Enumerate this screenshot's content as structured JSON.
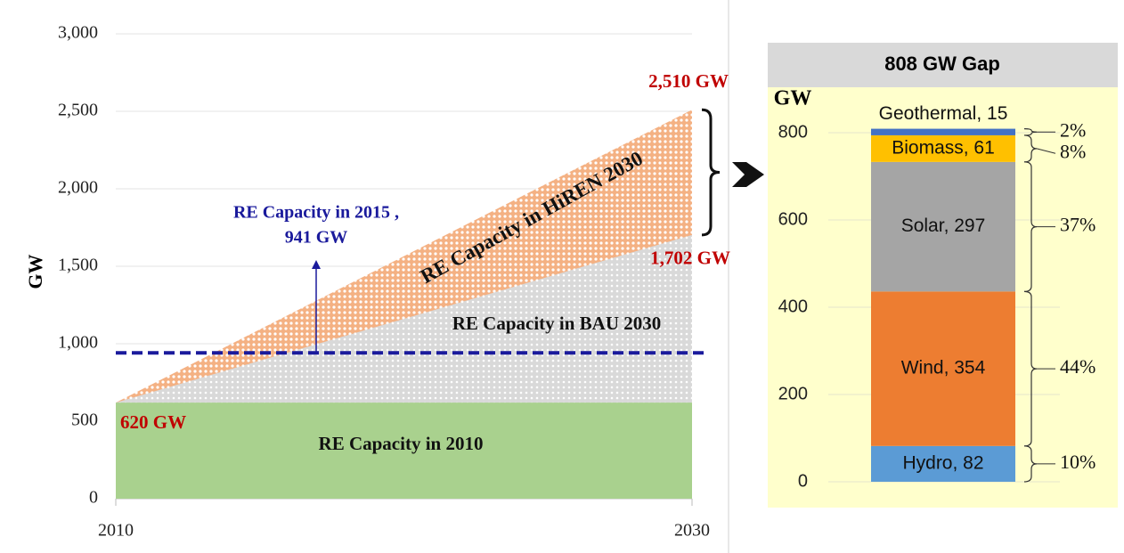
{
  "chart_data": [
    {
      "type": "area",
      "ylabel": "GW",
      "x": [
        2010,
        2030
      ],
      "xlim": [
        2010,
        2030
      ],
      "xticks": [
        2010,
        2030
      ],
      "ylim": [
        0,
        3000
      ],
      "yticks": [
        0,
        500,
        {
          "value": 1000,
          "label": "1,000"
        },
        {
          "value": 1500,
          "label": "1,500"
        },
        {
          "value": 2000,
          "label": "2,000"
        },
        {
          "value": 2500,
          "label": "2,500"
        },
        {
          "value": 3000,
          "label": "3,000"
        }
      ],
      "grid": true,
      "series": [
        {
          "name": "RE Capacity in 2010",
          "color": "#a9d18e",
          "values": [
            620,
            620
          ],
          "value_labels": [
            "620 GW",
            null
          ]
        },
        {
          "name": "RE Capacity in BAU 2030",
          "color": "#d9d9d9",
          "values": [
            620,
            1702
          ],
          "value_labels": [
            null,
            "1,702 GW"
          ]
        },
        {
          "name": "RE Capacity in HiREN 2030",
          "color": "#f4b183",
          "values": [
            620,
            2510
          ],
          "value_labels": [
            null,
            "2,510 GW"
          ]
        }
      ],
      "reference_line": {
        "value": 941,
        "color": "#1a1a9c",
        "label": [
          "RE Capacity in 2015 ,",
          "941 GW"
        ]
      }
    },
    {
      "type": "stacked_bar",
      "title": "808 GW Gap",
      "ylabel": "GW",
      "ylim": [
        0,
        900
      ],
      "yticks": [
        0,
        200,
        400,
        600,
        800
      ],
      "grid": true,
      "series": [
        {
          "name": "Hydro",
          "color": "#5b9bd5",
          "values": [
            82
          ],
          "value_labels": [
            "Hydro, 82"
          ],
          "share": 10,
          "share_label": "10%"
        },
        {
          "name": "Wind",
          "color": "#ed7d31",
          "values": [
            354
          ],
          "value_labels": [
            "Wind, 354"
          ],
          "share": 44,
          "share_label": "44%"
        },
        {
          "name": "Solar",
          "color": "#a5a5a5",
          "values": [
            297
          ],
          "value_labels": [
            "Solar, 297"
          ],
          "share": 37,
          "share_label": "37%"
        },
        {
          "name": "Biomass",
          "color": "#ffc000",
          "values": [
            61
          ],
          "value_labels": [
            "Biomass, 61"
          ],
          "share": 8,
          "share_label": "8%"
        },
        {
          "name": "Geothermal",
          "color": "#4472c4",
          "values": [
            15
          ],
          "value_labels": [
            "Geothermal, 15"
          ],
          "share": 2,
          "share_label": "2%"
        }
      ]
    }
  ]
}
